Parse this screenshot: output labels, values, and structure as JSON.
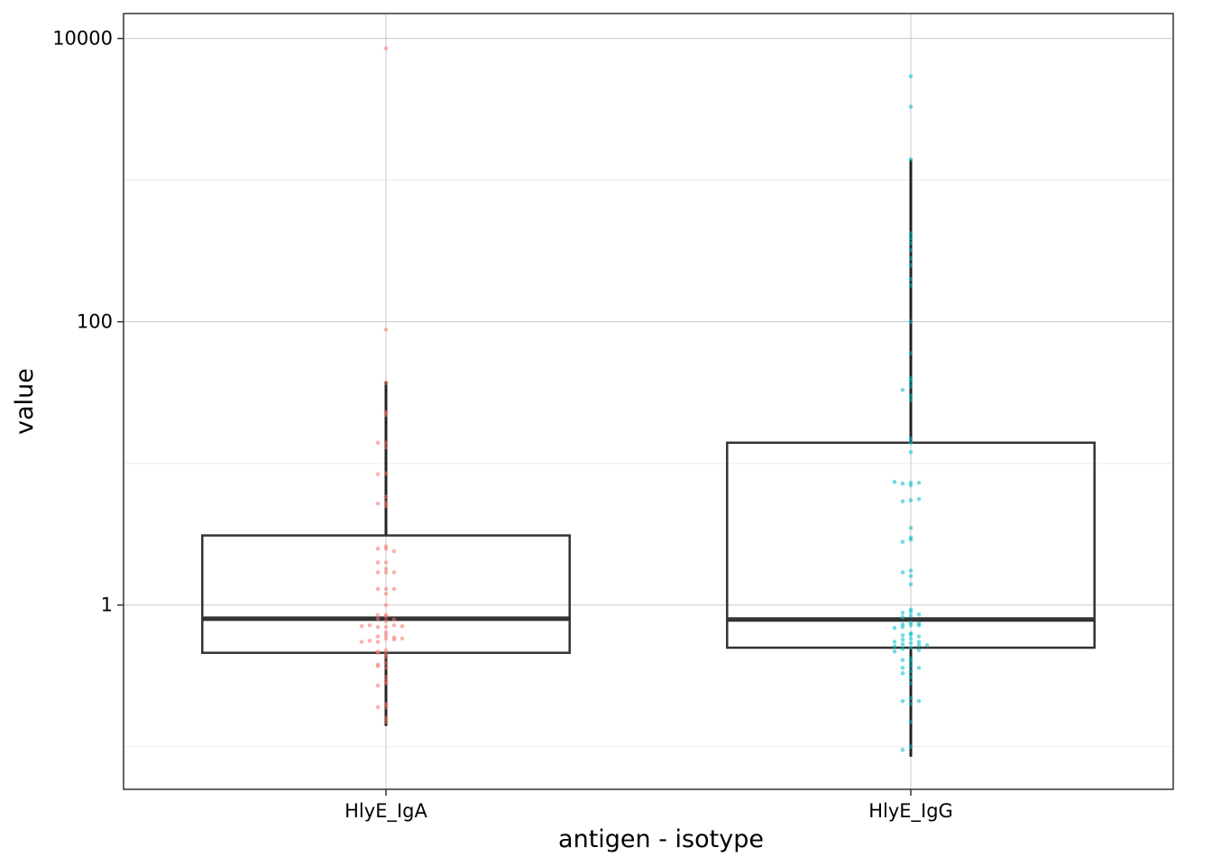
{
  "chart_data": {
    "type": "box",
    "xlabel": "antigen - isotype",
    "ylabel": "value",
    "y_scale": "log10",
    "ylim": [
      0.05,
      15000
    ],
    "y_ticks": [
      {
        "value": 1,
        "label": "1"
      },
      {
        "value": 100,
        "label": "100"
      },
      {
        "value": 10000,
        "label": "10000"
      }
    ],
    "y_minor_ticks": [
      0.1,
      10,
      1000
    ],
    "grid": true,
    "legend": "none",
    "categories": [
      "HlyE_IgA",
      "HlyE_IgG"
    ],
    "boxes": [
      {
        "category": "HlyE_IgA",
        "whisker_low": 0.14,
        "q1": 0.46,
        "median": 0.8,
        "q3": 3.1,
        "whisker_high": 38,
        "point_color": "#F8766D",
        "points": [
          8500,
          88,
          23,
          22,
          37,
          14,
          13,
          14,
          8.5,
          8.4,
          5.3,
          5.0,
          5.2,
          5.8,
          2.6,
          2.5,
          2.5,
          2.4,
          2.0,
          2.0,
          1.8,
          1.7,
          1.7,
          1.7,
          1.3,
          1.3,
          1.2,
          1.3,
          1.0,
          0.85,
          0.83,
          0.85,
          0.8,
          0.77,
          0.79,
          0.7,
          0.7,
          0.72,
          0.72,
          0.71,
          0.71,
          0.64,
          0.61,
          0.58,
          0.6,
          0.55,
          0.57,
          0.56,
          0.59,
          0.58,
          0.55,
          0.48,
          0.45,
          0.46,
          0.47,
          0.43,
          0.39,
          0.36,
          0.37,
          0.38,
          0.31,
          0.28,
          0.29,
          0.27,
          0.2,
          0.19,
          0.19,
          0.16,
          0.15
        ]
      },
      {
        "category": "HlyE_IgG",
        "whisker_low": 0.085,
        "q1": 0.5,
        "median": 0.79,
        "q3": 14,
        "whisker_high": 1400,
        "point_color": "#00BFC4",
        "points": [
          5400,
          3300,
          1400,
          420,
          390,
          360,
          320,
          280,
          250,
          200,
          180,
          100,
          60,
          40,
          38,
          35,
          33,
          30,
          28,
          15,
          14,
          12,
          7.3,
          7.2,
          7.3,
          7.4,
          7.0,
          5.5,
          5.4,
          5.6,
          3.5,
          3.0,
          2.9,
          2.8,
          1.75,
          1.7,
          1.6,
          1.4,
          0.93,
          0.9,
          0.88,
          0.86,
          0.84,
          0.82,
          0.75,
          0.73,
          0.74,
          0.72,
          0.7,
          0.72,
          0.69,
          0.63,
          0.62,
          0.61,
          0.6,
          0.58,
          0.57,
          0.55,
          0.55,
          0.54,
          0.53,
          0.52,
          0.51,
          0.52,
          0.5,
          0.49,
          0.48,
          0.47,
          0.42,
          0.41,
          0.4,
          0.37,
          0.36,
          0.36,
          0.34,
          0.33,
          0.31,
          0.28,
          0.22,
          0.21,
          0.21,
          0.2,
          0.15,
          0.1,
          0.095
        ]
      }
    ]
  }
}
